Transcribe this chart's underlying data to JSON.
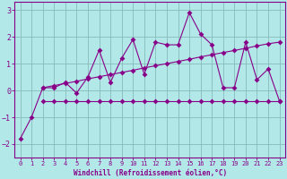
{
  "x": [
    0,
    1,
    2,
    3,
    4,
    5,
    6,
    7,
    8,
    9,
    10,
    11,
    12,
    13,
    14,
    15,
    16,
    17,
    18,
    19,
    20,
    21,
    22,
    23
  ],
  "y_main": [
    -1.8,
    -1.0,
    0.1,
    0.1,
    0.3,
    -0.1,
    0.5,
    1.5,
    0.3,
    1.2,
    1.9,
    0.6,
    1.8,
    1.7,
    1.7,
    2.9,
    2.1,
    1.7,
    0.1,
    0.1,
    1.8,
    0.4,
    0.8,
    -0.4
  ],
  "x_flat": [
    2,
    3,
    4,
    5,
    6,
    7,
    8,
    9,
    10,
    11,
    12,
    13,
    14,
    15,
    16,
    17,
    18,
    19,
    20,
    21,
    22,
    23
  ],
  "y_flat": [
    -0.4,
    -0.4,
    -0.4,
    -0.4,
    -0.4,
    -0.4,
    -0.4,
    -0.4,
    -0.4,
    -0.4,
    -0.4,
    -0.4,
    -0.4,
    -0.4,
    -0.4,
    -0.4,
    -0.4,
    -0.4,
    -0.4,
    -0.4,
    -0.4,
    -0.4
  ],
  "x_diag": [
    2,
    3,
    4,
    5,
    6,
    7,
    8,
    9,
    10,
    11,
    12,
    13,
    14,
    15,
    16,
    17,
    18,
    19,
    20,
    21,
    22,
    23
  ],
  "y_diag": [
    0.1,
    0.18,
    0.26,
    0.34,
    0.43,
    0.51,
    0.59,
    0.67,
    0.75,
    0.84,
    0.92,
    1.0,
    1.08,
    1.16,
    1.25,
    1.33,
    1.41,
    1.49,
    1.57,
    1.66,
    1.74,
    1.8
  ],
  "bg_color": "#b2e8e8",
  "line_color": "#880088",
  "grid_color": "#88bbbb",
  "xlabel": "Windchill (Refroidissement éolien,°C)",
  "ylim": [
    -2.5,
    3.3
  ],
  "xlim": [
    -0.5,
    23.5
  ],
  "yticks": [
    -2,
    -1,
    0,
    1,
    2,
    3
  ],
  "xticks": [
    0,
    1,
    2,
    3,
    4,
    5,
    6,
    7,
    8,
    9,
    10,
    11,
    12,
    13,
    14,
    15,
    16,
    17,
    18,
    19,
    20,
    21,
    22,
    23
  ]
}
